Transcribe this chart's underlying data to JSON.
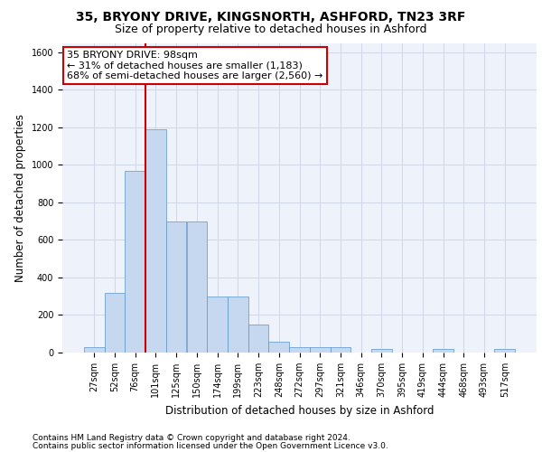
{
  "title_line1": "35, BRYONY DRIVE, KINGSNORTH, ASHFORD, TN23 3RF",
  "title_line2": "Size of property relative to detached houses in Ashford",
  "xlabel": "Distribution of detached houses by size in Ashford",
  "ylabel": "Number of detached properties",
  "categories": [
    "27sqm",
    "52sqm",
    "76sqm",
    "101sqm",
    "125sqm",
    "150sqm",
    "174sqm",
    "199sqm",
    "223sqm",
    "248sqm",
    "272sqm",
    "297sqm",
    "321sqm",
    "346sqm",
    "370sqm",
    "395sqm",
    "419sqm",
    "444sqm",
    "468sqm",
    "493sqm",
    "517sqm"
  ],
  "values": [
    30,
    320,
    970,
    1190,
    700,
    700,
    300,
    300,
    150,
    60,
    30,
    30,
    30,
    0,
    20,
    0,
    0,
    20,
    0,
    0,
    20
  ],
  "bar_color": "#c5d8f0",
  "bar_edge_color": "#5a96c8",
  "grid_color": "#d0d8e8",
  "background_color": "#eef2fa",
  "annotation_box_text": "35 BRYONY DRIVE: 98sqm\n← 31% of detached houses are smaller (1,183)\n68% of semi-detached houses are larger (2,560) →",
  "annotation_box_color": "#ffffff",
  "annotation_box_edge_color": "#cc0000",
  "vline_color": "#cc0000",
  "vline_pos": 2.5,
  "ylim": [
    0,
    1650
  ],
  "yticks": [
    0,
    200,
    400,
    600,
    800,
    1000,
    1200,
    1400,
    1600
  ],
  "footer_line1": "Contains HM Land Registry data © Crown copyright and database right 2024.",
  "footer_line2": "Contains public sector information licensed under the Open Government Licence v3.0.",
  "title_fontsize": 10,
  "subtitle_fontsize": 9,
  "axis_label_fontsize": 8.5,
  "tick_fontsize": 7,
  "footer_fontsize": 6.5,
  "annotation_fontsize": 8
}
